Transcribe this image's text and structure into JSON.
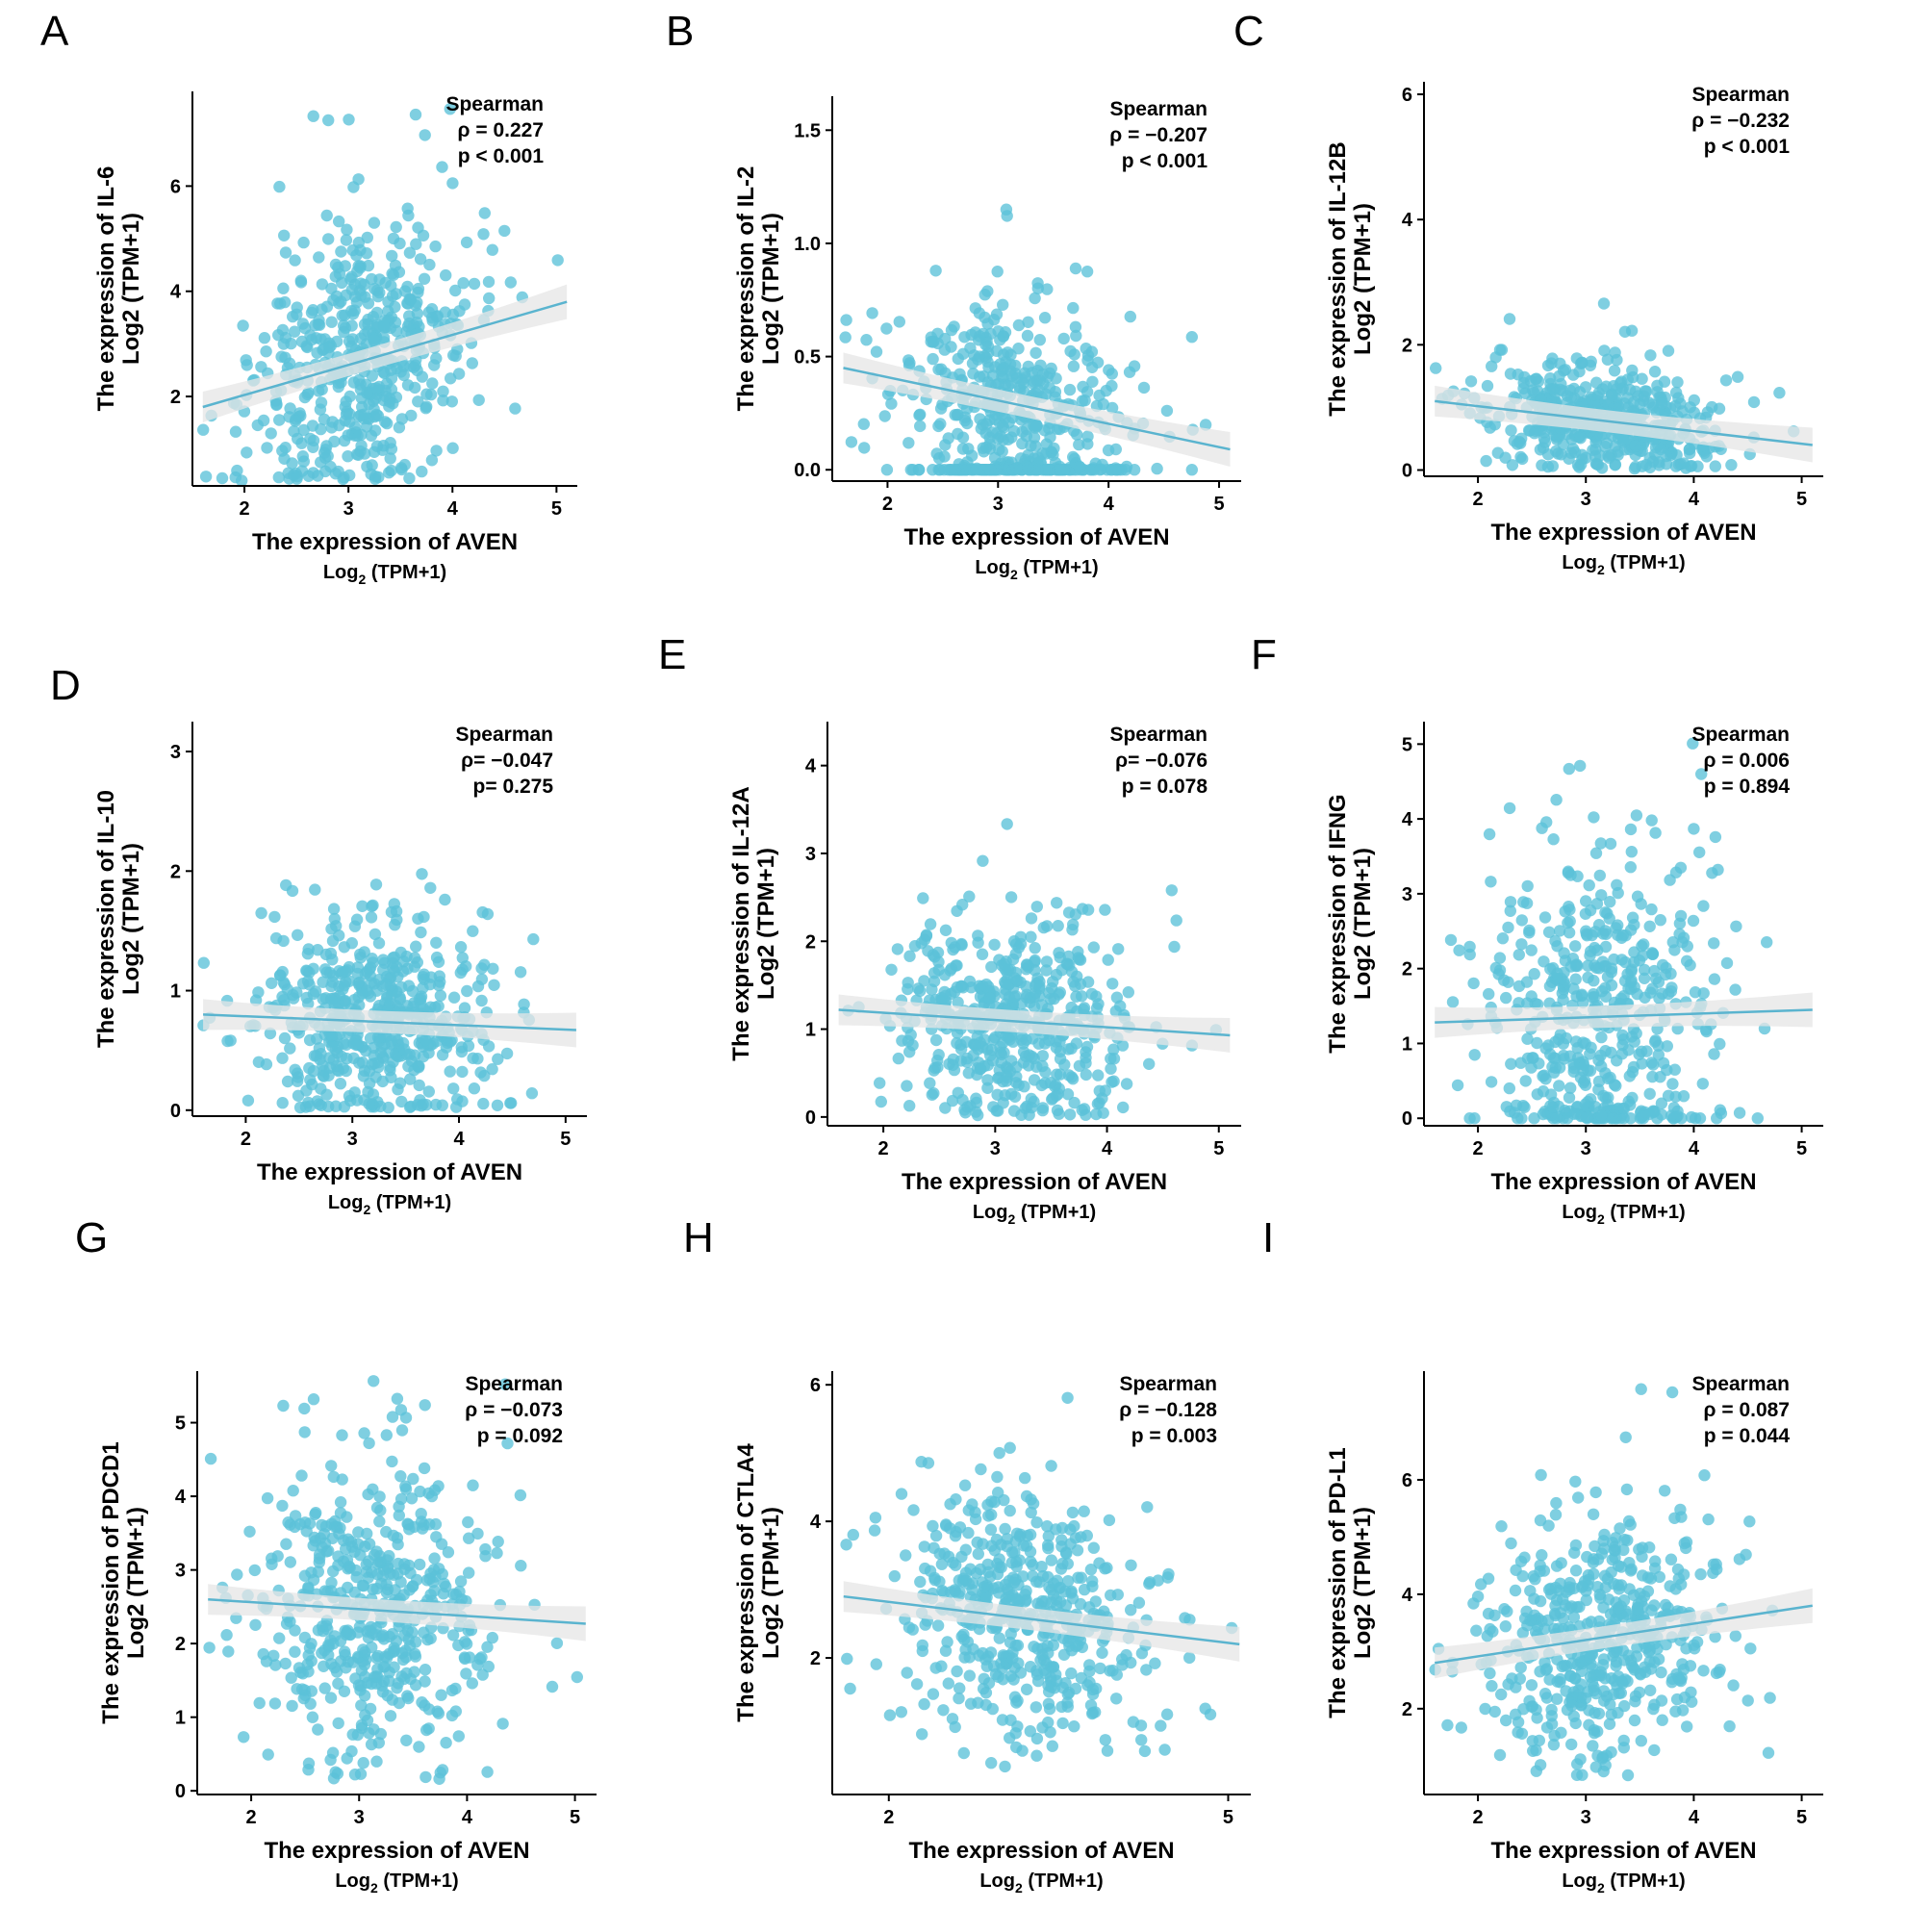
{
  "style": {
    "point_color": "#5bc2d9",
    "line_color": "#5ab4cf",
    "band_color": "#e6e6e6"
  },
  "x_axis": {
    "title": "The expression of AVEN",
    "unit_main": "Log",
    "unit_sub": "2",
    "unit_rest": " (TPM+1)"
  },
  "stat_method": "Spearman",
  "n_points": 520,
  "panels": [
    {
      "letter": "A",
      "gene": "IL-6",
      "y_title": "The expression of IL-6",
      "y_unit": "Log2 (TPM+1)",
      "rho_text": "ρ = 0.227",
      "p_text": "p < 0.001",
      "rho": 0.227,
      "x_range": [
        1.5,
        5.2
      ],
      "x_ticks": [
        2,
        3,
        4,
        5
      ],
      "y_range": [
        0.3,
        7.8
      ],
      "y_ticks": [
        2,
        4,
        6
      ],
      "fit": {
        "x0": 1.6,
        "y0": 1.8,
        "x1": 5.1,
        "y1": 3.8
      },
      "y_center": 2.7,
      "y_spread": 1.3,
      "y_min_clip": 0.4,
      "y_max_clip": 7.6,
      "zero_frac": 0
    },
    {
      "letter": "B",
      "gene": "IL-2",
      "y_title": "The expression of IL-2",
      "y_unit": "Log2 (TPM+1)",
      "rho_text": "ρ = −0.207",
      "p_text": "p < 0.001",
      "rho": -0.207,
      "x_range": [
        1.5,
        5.2
      ],
      "x_ticks": [
        2,
        3,
        4,
        5
      ],
      "y_range": [
        -0.05,
        1.65
      ],
      "y_ticks": [
        0.0,
        0.5,
        1.0,
        1.5
      ],
      "fit": {
        "x0": 1.6,
        "y0": 0.45,
        "x1": 5.1,
        "y1": 0.09
      },
      "y_center": 0.28,
      "y_spread": 0.22,
      "y_min_clip": 0.0,
      "y_max_clip": 1.58,
      "zero_frac": 0.22
    },
    {
      "letter": "C",
      "gene": "IL-12B",
      "y_title": "The expression of IL-12B",
      "y_unit": "Log2 (TPM+1)",
      "rho_text": "ρ = −0.232",
      "p_text": "p < 0.001",
      "rho": -0.232,
      "x_range": [
        1.5,
        5.2
      ],
      "x_ticks": [
        2,
        3,
        4,
        5
      ],
      "y_range": [
        -0.1,
        6.2
      ],
      "y_ticks": [
        0,
        2,
        4,
        6
      ],
      "fit": {
        "x0": 1.6,
        "y0": 1.1,
        "x1": 5.1,
        "y1": 0.4
      },
      "y_center": 0.8,
      "y_spread": 0.45,
      "y_min_clip": 0.02,
      "y_max_clip": 5.8,
      "zero_frac": 0
    },
    {
      "letter": "D",
      "gene": "IL-10",
      "y_title": "The expression of IL-10",
      "y_unit": "Log2 (TPM+1)",
      "rho_text": "ρ= −0.047",
      "p_text": "p= 0.275",
      "rho": -0.047,
      "x_range": [
        1.5,
        5.2
      ],
      "x_ticks": [
        2,
        3,
        4,
        5
      ],
      "y_range": [
        -0.05,
        3.25
      ],
      "y_ticks": [
        0,
        1,
        2,
        3
      ],
      "fit": {
        "x0": 1.6,
        "y0": 0.8,
        "x1": 5.1,
        "y1": 0.67
      },
      "y_center": 0.7,
      "y_spread": 0.42,
      "y_min_clip": 0.02,
      "y_max_clip": 3.15,
      "zero_frac": 0
    },
    {
      "letter": "E",
      "gene": "IL-12A",
      "y_title": "The expression of IL-12A",
      "y_unit": "Log2 (TPM+1)",
      "rho_text": "ρ= −0.076",
      "p_text": "p = 0.078",
      "rho": -0.076,
      "x_range": [
        1.5,
        5.2
      ],
      "x_ticks": [
        2,
        3,
        4,
        5
      ],
      "y_range": [
        -0.1,
        4.5
      ],
      "y_ticks": [
        0,
        1,
        2,
        3,
        4
      ],
      "fit": {
        "x0": 1.6,
        "y0": 1.22,
        "x1": 5.1,
        "y1": 0.93
      },
      "y_center": 1.05,
      "y_spread": 0.6,
      "y_min_clip": 0.02,
      "y_max_clip": 4.4,
      "zero_frac": 0
    },
    {
      "letter": "F",
      "gene": "IFNG",
      "y_title": "The expression of IFNG",
      "y_unit": "Log2 (TPM+1)",
      "rho_text": "ρ = 0.006",
      "p_text": "p = 0.894",
      "rho": 0.006,
      "x_range": [
        1.5,
        5.2
      ],
      "x_ticks": [
        2,
        3,
        4,
        5
      ],
      "y_range": [
        -0.1,
        5.3
      ],
      "y_ticks": [
        0,
        1,
        2,
        3,
        4,
        5
      ],
      "fit": {
        "x0": 1.6,
        "y0": 1.28,
        "x1": 5.1,
        "y1": 1.45
      },
      "y_center": 1.3,
      "y_spread": 1.1,
      "y_min_clip": 0.0,
      "y_max_clip": 5.1,
      "zero_frac": 0.06
    },
    {
      "letter": "G",
      "gene": "PDCD1",
      "y_title": "The expression of PDCD1",
      "y_unit": "Log2 (TPM+1)",
      "rho_text": "ρ = −0.073",
      "p_text": "p = 0.092",
      "rho": -0.073,
      "x_range": [
        1.5,
        5.2
      ],
      "x_ticks": [
        2,
        3,
        4,
        5
      ],
      "y_range": [
        -0.05,
        5.7
      ],
      "y_ticks": [
        0,
        1,
        2,
        3,
        4,
        5
      ],
      "fit": {
        "x0": 1.6,
        "y0": 2.6,
        "x1": 5.1,
        "y1": 2.27
      },
      "y_center": 2.5,
      "y_spread": 1.0,
      "y_min_clip": 0.15,
      "y_max_clip": 5.6,
      "zero_frac": 0
    },
    {
      "letter": "H",
      "gene": "CTLA4",
      "y_title": "The expression of CTLA4",
      "y_unit": "Log2 (TPM+1)",
      "rho_text": "ρ = −0.128",
      "p_text": "p = 0.003",
      "rho": -0.128,
      "x_range": [
        1.5,
        5.2
      ],
      "x_ticks": [
        2,
        5
      ],
      "y_range": [
        0.0,
        6.2
      ],
      "y_ticks": [
        2,
        4,
        6
      ],
      "fit": {
        "x0": 1.6,
        "y0": 2.9,
        "x1": 5.1,
        "y1": 2.2
      },
      "y_center": 2.7,
      "y_spread": 0.9,
      "y_min_clip": 0.2,
      "y_max_clip": 6.0,
      "zero_frac": 0
    },
    {
      "letter": "I",
      "gene": "PD-L1",
      "y_title": "The expression of PD-L1",
      "y_unit": "Log2 (TPM+1)",
      "rho_text": "ρ = 0.087",
      "p_text": "p = 0.044",
      "rho": 0.087,
      "x_range": [
        1.5,
        5.2
      ],
      "x_ticks": [
        2,
        3,
        4,
        5
      ],
      "y_range": [
        0.5,
        7.9
      ],
      "y_ticks": [
        2,
        4,
        6
      ],
      "fit": {
        "x0": 1.6,
        "y0": 2.8,
        "x1": 5.1,
        "y1": 3.8
      },
      "y_center": 3.2,
      "y_spread": 1.1,
      "y_min_clip": 0.8,
      "y_max_clip": 7.6,
      "zero_frac": 0
    }
  ],
  "chart_data": [
    {
      "type": "scatter",
      "title": "A",
      "xlabel": "The expression of AVEN Log2 (TPM+1)",
      "ylabel": "The expression of IL-6 Log2 (TPM+1)",
      "xlim": [
        1.5,
        5.2
      ],
      "ylim": [
        0.3,
        7.8
      ],
      "spearman_rho": 0.227,
      "p": "< 0.001",
      "fit_line": [
        [
          1.6,
          1.8
        ],
        [
          5.1,
          3.8
        ]
      ]
    },
    {
      "type": "scatter",
      "title": "B",
      "xlabel": "The expression of AVEN Log2 (TPM+1)",
      "ylabel": "The expression of IL-2 Log2 (TPM+1)",
      "xlim": [
        1.5,
        5.2
      ],
      "ylim": [
        -0.05,
        1.65
      ],
      "spearman_rho": -0.207,
      "p": "< 0.001",
      "fit_line": [
        [
          1.6,
          0.45
        ],
        [
          5.1,
          0.09
        ]
      ]
    },
    {
      "type": "scatter",
      "title": "C",
      "xlabel": "The expression of AVEN Log2 (TPM+1)",
      "ylabel": "The expression of IL-12B Log2 (TPM+1)",
      "xlim": [
        1.5,
        5.2
      ],
      "ylim": [
        -0.1,
        6.2
      ],
      "spearman_rho": -0.232,
      "p": "< 0.001",
      "fit_line": [
        [
          1.6,
          1.1
        ],
        [
          5.1,
          0.4
        ]
      ]
    },
    {
      "type": "scatter",
      "title": "D",
      "xlabel": "The expression of AVEN Log2 (TPM+1)",
      "ylabel": "The expression of IL-10 Log2 (TPM+1)",
      "xlim": [
        1.5,
        5.2
      ],
      "ylim": [
        -0.05,
        3.25
      ],
      "spearman_rho": -0.047,
      "p": "0.275",
      "fit_line": [
        [
          1.6,
          0.8
        ],
        [
          5.1,
          0.67
        ]
      ]
    },
    {
      "type": "scatter",
      "title": "E",
      "xlabel": "The expression of AVEN Log2 (TPM+1)",
      "ylabel": "The expression of IL-12A Log2 (TPM+1)",
      "xlim": [
        1.5,
        5.2
      ],
      "ylim": [
        -0.1,
        4.5
      ],
      "spearman_rho": -0.076,
      "p": "0.078",
      "fit_line": [
        [
          1.6,
          1.22
        ],
        [
          5.1,
          0.93
        ]
      ]
    },
    {
      "type": "scatter",
      "title": "F",
      "xlabel": "The expression of AVEN Log2 (TPM+1)",
      "ylabel": "The expression of IFNG Log2 (TPM+1)",
      "xlim": [
        1.5,
        5.2
      ],
      "ylim": [
        -0.1,
        5.3
      ],
      "spearman_rho": 0.006,
      "p": "0.894",
      "fit_line": [
        [
          1.6,
          1.28
        ],
        [
          5.1,
          1.45
        ]
      ]
    },
    {
      "type": "scatter",
      "title": "G",
      "xlabel": "The expression of AVEN Log2 (TPM+1)",
      "ylabel": "The expression of PDCD1 Log2 (TPM+1)",
      "xlim": [
        1.5,
        5.2
      ],
      "ylim": [
        -0.05,
        5.7
      ],
      "spearman_rho": -0.073,
      "p": "0.092",
      "fit_line": [
        [
          1.6,
          2.6
        ],
        [
          5.1,
          2.27
        ]
      ]
    },
    {
      "type": "scatter",
      "title": "H",
      "xlabel": "The expression of AVEN Log2 (TPM+1)",
      "ylabel": "The expression of CTLA4 Log2 (TPM+1)",
      "xlim": [
        1.5,
        5.2
      ],
      "ylim": [
        0.0,
        6.2
      ],
      "spearman_rho": -0.128,
      "p": "0.003",
      "fit_line": [
        [
          1.6,
          2.9
        ],
        [
          5.1,
          2.2
        ]
      ]
    },
    {
      "type": "scatter",
      "title": "I",
      "xlabel": "The expression of AVEN Log2 (TPM+1)",
      "ylabel": "The expression of PD-L1 Log2 (TPM+1)",
      "xlim": [
        1.5,
        5.2
      ],
      "ylim": [
        0.5,
        7.9
      ],
      "spearman_rho": 0.087,
      "p": "0.044",
      "fit_line": [
        [
          1.6,
          2.8
        ],
        [
          5.1,
          3.8
        ]
      ]
    }
  ]
}
